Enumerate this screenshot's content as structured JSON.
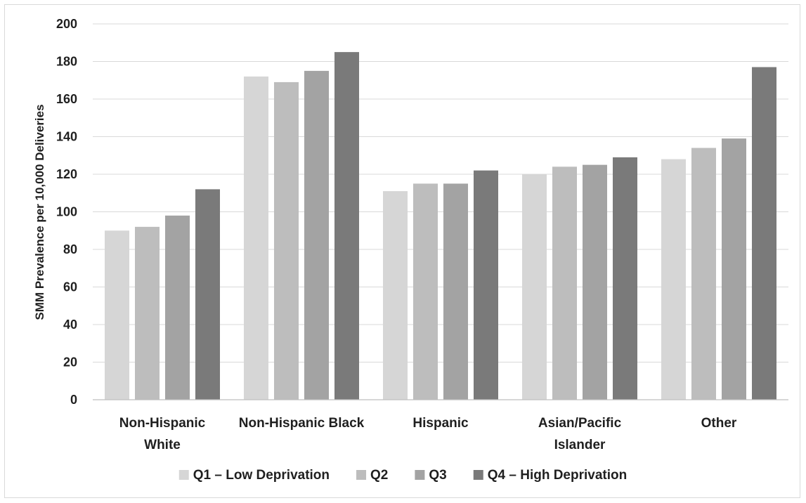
{
  "chart_data": {
    "type": "bar",
    "title": "",
    "xlabel": "",
    "ylabel": "SMM Prevalence per 10,000 Deliveries",
    "ylim": [
      0,
      200
    ],
    "yticks": [
      0,
      20,
      40,
      60,
      80,
      100,
      120,
      140,
      160,
      180,
      200
    ],
    "grid": "horizontal",
    "legend_position": "bottom",
    "categories": [
      [
        "Non-Hispanic",
        "White"
      ],
      [
        "Non-Hispanic Black"
      ],
      [
        "Hispanic"
      ],
      [
        "Asian/Pacific",
        "Islander"
      ],
      [
        "Other"
      ]
    ],
    "series": [
      {
        "name": "Q1 – Low Deprivation",
        "color": "#d6d6d6",
        "values": [
          90,
          172,
          111,
          120,
          128
        ]
      },
      {
        "name": "Q2",
        "color": "#bdbdbd",
        "values": [
          92,
          169,
          115,
          124,
          134
        ]
      },
      {
        "name": "Q3",
        "color": "#a3a3a3",
        "values": [
          98,
          175,
          115,
          125,
          139
        ]
      },
      {
        "name": "Q4 – High Deprivation",
        "color": "#7a7a7a",
        "values": [
          112,
          185,
          122,
          129,
          177
        ]
      }
    ]
  }
}
